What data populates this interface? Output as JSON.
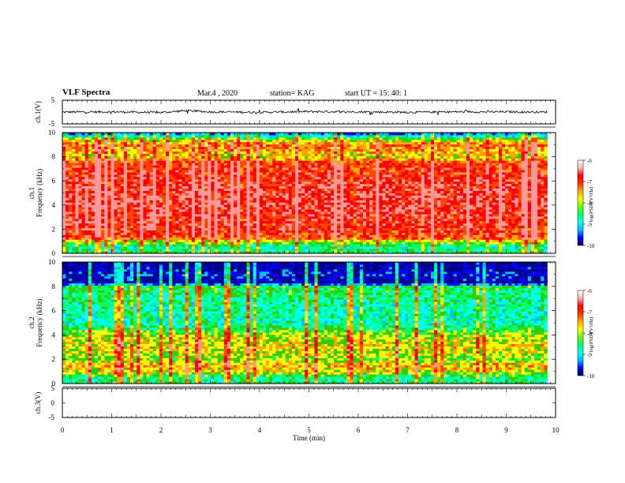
{
  "header": {
    "title": "VLF Spectra",
    "date": "Mar.4 , 2020",
    "station": "station= KAG",
    "start": "start UT = 15: 40: 1"
  },
  "colors": {
    "colormap": [
      "#00008b",
      "#0000ff",
      "#00bfff",
      "#00ffff",
      "#00ff66",
      "#33cc00",
      "#ffff00",
      "#ffa500",
      "#ff4500",
      "#ff0000",
      "#ff9999",
      "#ffffff"
    ],
    "waveform": "#000000",
    "axes": "#000000"
  },
  "chart_data": [
    {
      "type": "line",
      "name": "ch.1 waveform",
      "ylabel": "ch.1(V)",
      "ylim": [
        -5,
        5
      ],
      "yticks": [
        "5",
        "-5"
      ],
      "xlim": [
        0,
        10
      ],
      "x": [
        0,
        1,
        2,
        2.5,
        3,
        4,
        5,
        6,
        7,
        8,
        9,
        9.83
      ],
      "values": [
        0,
        0.1,
        -0.2,
        0.6,
        0.1,
        -0.1,
        0.2,
        0.1,
        -0.1,
        0.1,
        0.1,
        0
      ]
    },
    {
      "type": "heatmap",
      "name": "ch.1 spectrogram",
      "ylabel": "Frequency (kHz)",
      "channel_label": "ch.1",
      "ylim": [
        0,
        10
      ],
      "xlim": [
        0,
        10
      ],
      "data_xmax": 9.83,
      "yticks": [
        "0",
        "2",
        "4",
        "6",
        "8",
        "10"
      ],
      "colorbar": {
        "label": "log(PSD)(V²/Hz)",
        "ticks": [
          "-6",
          "-7",
          "-8",
          "-9",
          "-10"
        ],
        "range": [
          -10,
          -6
        ]
      },
      "freq_profile_kHz": [
        0,
        0.5,
        1,
        1.3,
        2,
        4,
        6,
        7.5,
        8,
        9,
        9.5,
        10
      ],
      "freq_profile_logpsd": [
        -8.2,
        -8.6,
        -7.8,
        -6.9,
        -6.7,
        -6.5,
        -6.6,
        -6.8,
        -7.6,
        -7.0,
        -8.0,
        -9.5
      ]
    },
    {
      "type": "heatmap",
      "name": "ch.2 spectrogram",
      "ylabel": "Frequency (kHz)",
      "channel_label": "ch.2",
      "ylim": [
        0,
        10
      ],
      "xlim": [
        0,
        10
      ],
      "data_xmax": 9.83,
      "yticks": [
        "0",
        "2",
        "4",
        "6",
        "8",
        "10"
      ],
      "colorbar": {
        "label": "log(PSD)(V²/Hz)",
        "ticks": [
          "-6",
          "-7",
          "-8",
          "-9",
          "-10"
        ],
        "range": [
          -10,
          -6
        ]
      },
      "freq_profile_kHz": [
        0,
        0.5,
        1,
        1.5,
        2,
        3,
        4,
        5,
        6,
        7,
        8,
        8.3,
        9,
        10
      ],
      "freq_profile_logpsd": [
        -8.3,
        -8.4,
        -7.6,
        -7.3,
        -7.9,
        -7.5,
        -7.8,
        -8.6,
        -8.5,
        -8.4,
        -8.2,
        -9.8,
        -9.5,
        -9.9
      ]
    },
    {
      "type": "line",
      "name": "ch.3 waveform",
      "ylabel": "ch.3(V)",
      "ylim": [
        -5,
        5
      ],
      "yticks": [
        "5",
        "0",
        "-5"
      ],
      "xlim": [
        0,
        10
      ],
      "xlabel": "Time (min)",
      "xticks": [
        "0",
        "1",
        "2",
        "3",
        "4",
        "5",
        "6",
        "7",
        "8",
        "9",
        "10"
      ],
      "x": [],
      "values": []
    }
  ]
}
